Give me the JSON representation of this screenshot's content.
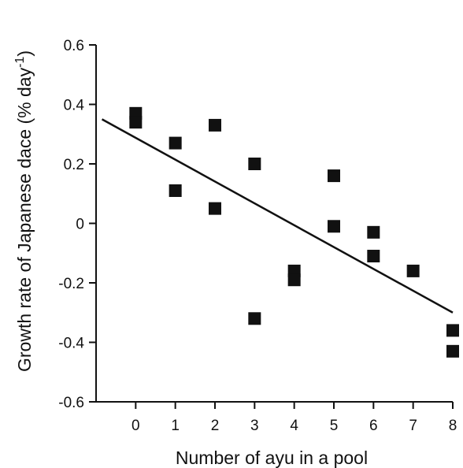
{
  "chart_data": {
    "type": "scatter",
    "title": "",
    "xlabel": "Number of ayu in a pool",
    "ylabel_main": "Growth rate of Japanese dace (% day",
    "ylabel_sup": "-1",
    "ylabel_close": ")",
    "xlim": [
      -1,
      8
    ],
    "ylim": [
      -0.6,
      0.6
    ],
    "x_ticks": [
      0,
      1,
      2,
      3,
      4,
      5,
      6,
      7,
      8
    ],
    "x_tick_labels": [
      "0",
      "1",
      "2",
      "3",
      "4",
      "5",
      "6",
      "7",
      "8"
    ],
    "y_ticks": [
      -0.6,
      -0.4,
      -0.2,
      0,
      0.2,
      0.4,
      0.6
    ],
    "y_tick_labels": [
      "-0.6",
      "-0.4",
      "-0.2",
      "0",
      "0.2",
      "0.4",
      "0.6"
    ],
    "grid": false,
    "marker_color": "#111111",
    "points": [
      {
        "x": 0,
        "y": 0.37
      },
      {
        "x": 0,
        "y": 0.34
      },
      {
        "x": 1,
        "y": 0.27
      },
      {
        "x": 1,
        "y": 0.11
      },
      {
        "x": 2,
        "y": 0.33
      },
      {
        "x": 2,
        "y": 0.05
      },
      {
        "x": 3,
        "y": 0.2
      },
      {
        "x": 3,
        "y": -0.32
      },
      {
        "x": 4,
        "y": -0.16
      },
      {
        "x": 4,
        "y": -0.19
      },
      {
        "x": 5,
        "y": 0.16
      },
      {
        "x": 5,
        "y": -0.01
      },
      {
        "x": 6,
        "y": -0.03
      },
      {
        "x": 6,
        "y": -0.11
      },
      {
        "x": 7,
        "y": -0.16
      },
      {
        "x": 8,
        "y": -0.36
      },
      {
        "x": 8,
        "y": -0.43
      }
    ],
    "regression_line": {
      "x": [
        -0.85,
        8
      ],
      "y": [
        0.35,
        -0.3
      ]
    }
  }
}
